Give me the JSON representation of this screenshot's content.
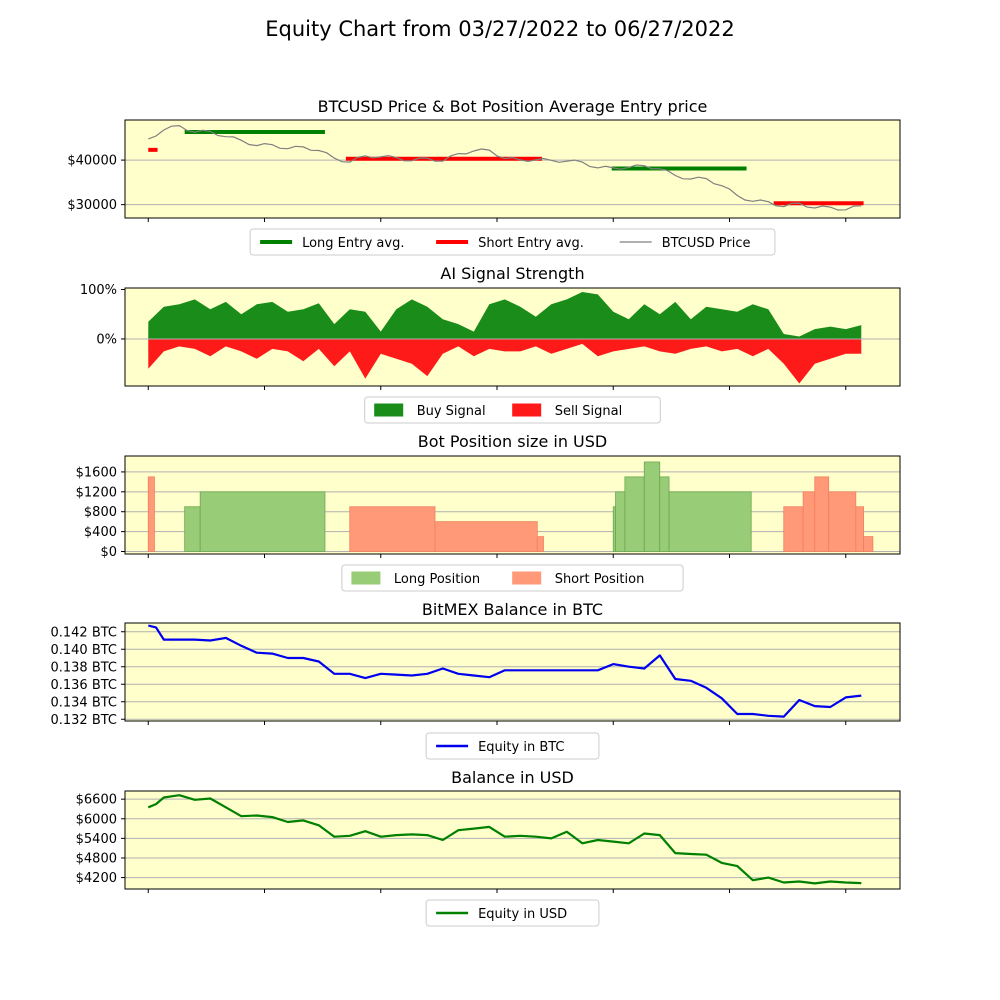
{
  "figure": {
    "title": "Equity Chart from 03/27/2022 to 06/27/2022"
  },
  "colors": {
    "panel_bg": "#ffffcc",
    "long": "#008000",
    "short": "#ff0000",
    "price": "#808080",
    "buy_fill": "#1a8c1a",
    "sell_fill": "#ff1a1a",
    "long_pos": "#99cc77",
    "short_pos": "#ff9977",
    "btc_line": "#0000ee",
    "usd_line": "#008000",
    "grid": "#b0b0b0"
  },
  "chart_data": [
    {
      "type": "line",
      "title": "BTCUSD Price & Bot Position Average Entry price",
      "ylim": [
        27000,
        49000
      ],
      "yticks": [
        30000,
        40000
      ],
      "ytick_labels": [
        "$30000",
        "$40000"
      ],
      "grid": "horizontal",
      "legend": {
        "placement": "bottom",
        "entries": [
          "Long Entry avg.",
          "Short Entry avg.",
          "BTCUSD Price"
        ]
      },
      "series": [
        {
          "name": "BTCUSD Price",
          "x": [
            0,
            2,
            4,
            6,
            8,
            10,
            12,
            14,
            16,
            18,
            20,
            22,
            24,
            26,
            28,
            30,
            32,
            34,
            36,
            38,
            40,
            42,
            44,
            46,
            48,
            50,
            52,
            54,
            56,
            58,
            60,
            62,
            64,
            66,
            68,
            70,
            72,
            74,
            76,
            78,
            80,
            82,
            84,
            86,
            88,
            90,
            92
          ],
          "y": [
            44500,
            47000,
            47500,
            46500,
            46200,
            45500,
            44200,
            43500,
            43200,
            42800,
            42700,
            42400,
            40200,
            39800,
            40700,
            41000,
            40300,
            40100,
            40200,
            40000,
            41200,
            42300,
            42000,
            40600,
            39800,
            40300,
            39700,
            40000,
            39300,
            38500,
            38000,
            38600,
            38500,
            38300,
            36300,
            36000,
            35600,
            34500,
            31800,
            31000,
            30400,
            29800,
            30100,
            29500,
            29200,
            29100,
            29500
          ]
        },
        {
          "name": "Long Entry avg.",
          "segments": [
            {
              "x": [
                4.7,
                22.8
              ],
              "y": 46300
            },
            {
              "x": [
                59.8,
                77.2
              ],
              "y": 38100
            }
          ]
        },
        {
          "name": "Short Entry avg.",
          "segments": [
            {
              "x": [
                0,
                1.2
              ],
              "y": 42300
            },
            {
              "x": [
                25.5,
                50.8
              ],
              "y": 40300
            },
            {
              "x": [
                80.7,
                92.3
              ],
              "y": 30300
            }
          ]
        }
      ]
    },
    {
      "type": "area",
      "title": "AI Signal Strength",
      "ylim": [
        -95,
        103
      ],
      "yticks": [
        0,
        100
      ],
      "ytick_labels": [
        "0%",
        "100%"
      ],
      "legend": {
        "placement": "bottom",
        "entries": [
          "Buy Signal",
          "Sell Signal"
        ]
      },
      "series": [
        {
          "name": "Buy Signal",
          "x": [
            0,
            2,
            4,
            6,
            8,
            10,
            12,
            14,
            16,
            18,
            20,
            22,
            24,
            26,
            28,
            30,
            32,
            34,
            36,
            38,
            40,
            42,
            44,
            46,
            48,
            50,
            52,
            54,
            56,
            58,
            60,
            62,
            64,
            66,
            68,
            70,
            72,
            74,
            76,
            78,
            80,
            82,
            84,
            86,
            88,
            90,
            92
          ],
          "y": [
            35,
            65,
            70,
            80,
            60,
            75,
            50,
            70,
            75,
            55,
            60,
            72,
            30,
            60,
            55,
            15,
            60,
            80,
            65,
            40,
            30,
            15,
            70,
            80,
            65,
            45,
            70,
            80,
            95,
            90,
            55,
            40,
            70,
            50,
            75,
            40,
            65,
            60,
            55,
            70,
            60,
            10,
            5,
            20,
            25,
            20,
            28
          ]
        },
        {
          "name": "Sell Signal",
          "x": [
            0,
            2,
            4,
            6,
            8,
            10,
            12,
            14,
            16,
            18,
            20,
            22,
            24,
            26,
            28,
            30,
            32,
            34,
            36,
            38,
            40,
            42,
            44,
            46,
            48,
            50,
            52,
            54,
            56,
            58,
            60,
            62,
            64,
            66,
            68,
            70,
            72,
            74,
            76,
            78,
            80,
            82,
            84,
            86,
            88,
            90,
            92
          ],
          "y": [
            -60,
            -25,
            -15,
            -20,
            -35,
            -15,
            -25,
            -40,
            -20,
            -25,
            -45,
            -20,
            -55,
            -25,
            -80,
            -30,
            -40,
            -50,
            -75,
            -30,
            -15,
            -35,
            -20,
            -25,
            -25,
            -15,
            -30,
            -20,
            -10,
            -35,
            -25,
            -20,
            -15,
            -25,
            -30,
            -20,
            -15,
            -25,
            -20,
            -35,
            -20,
            -50,
            -90,
            -50,
            -40,
            -30,
            -30
          ]
        }
      ]
    },
    {
      "type": "area",
      "title": "Bot Position size in USD",
      "ylim": [
        -50,
        1920
      ],
      "yticks": [
        0,
        400,
        800,
        1200,
        1600
      ],
      "ytick_labels": [
        "$0",
        "$400",
        "$800",
        "$1200",
        "$1600"
      ],
      "grid": "horizontal",
      "legend": {
        "placement": "bottom",
        "entries": [
          "Long Position",
          "Short Position"
        ]
      },
      "series": [
        {
          "name": "Long Position",
          "blocks": [
            {
              "x": [
                4.7,
                6.7
              ],
              "y": 900
            },
            {
              "x": [
                6.7,
                22.8
              ],
              "y": 1200
            },
            {
              "x": [
                60.0,
                60.3
              ],
              "y": 900
            },
            {
              "x": [
                60.3,
                61.5
              ],
              "y": 1200
            },
            {
              "x": [
                61.5,
                64.0
              ],
              "y": 1500
            },
            {
              "x": [
                64.0,
                66.0
              ],
              "y": 1800
            },
            {
              "x": [
                66.0,
                67.2
              ],
              "y": 1500
            },
            {
              "x": [
                67.2,
                77.8
              ],
              "y": 1200
            }
          ]
        },
        {
          "name": "Short Position",
          "blocks": [
            {
              "x": [
                0,
                0.8
              ],
              "y": 1500
            },
            {
              "x": [
                26.0,
                37.0
              ],
              "y": 900
            },
            {
              "x": [
                37.0,
                50.2
              ],
              "y": 600
            },
            {
              "x": [
                50.2,
                51.0
              ],
              "y": 300
            },
            {
              "x": [
                82.0,
                84.5
              ],
              "y": 900
            },
            {
              "x": [
                84.5,
                86.0
              ],
              "y": 1200
            },
            {
              "x": [
                86.0,
                87.8
              ],
              "y": 1500
            },
            {
              "x": [
                87.8,
                91.3
              ],
              "y": 1200
            },
            {
              "x": [
                91.3,
                92.3
              ],
              "y": 900
            },
            {
              "x": [
                92.3,
                93.5
              ],
              "y": 300
            }
          ]
        }
      ]
    },
    {
      "type": "line",
      "title": "BitMEX Balance in BTC",
      "ylim": [
        0.1318,
        0.143
      ],
      "yticks": [
        0.132,
        0.134,
        0.136,
        0.138,
        0.14,
        0.142
      ],
      "ytick_labels": [
        "0.132 BTC",
        "0.134 BTC",
        "0.136 BTC",
        "0.138 BTC",
        "0.140 BTC",
        "0.142 BTC"
      ],
      "grid": "horizontal",
      "legend": {
        "placement": "bottom",
        "entries": [
          "Equity in BTC"
        ]
      },
      "series": [
        {
          "name": "Equity in BTC",
          "x": [
            0,
            1,
            2,
            4,
            6,
            8,
            10,
            12,
            14,
            16,
            18,
            20,
            22,
            24,
            26,
            28,
            30,
            32,
            34,
            36,
            38,
            40,
            42,
            44,
            46,
            48,
            50,
            52,
            54,
            56,
            58,
            60,
            62,
            64,
            66,
            68,
            70,
            72,
            74,
            76,
            78,
            80,
            82,
            84,
            86,
            88,
            90,
            92
          ],
          "y": [
            0.1427,
            0.1425,
            0.1411,
            0.1411,
            0.1411,
            0.141,
            0.1413,
            0.1404,
            0.1396,
            0.1395,
            0.139,
            0.139,
            0.1386,
            0.1372,
            0.1372,
            0.1367,
            0.1372,
            0.1371,
            0.137,
            0.1372,
            0.1378,
            0.1372,
            0.137,
            0.1368,
            0.1376,
            0.1376,
            0.1376,
            0.1376,
            0.1376,
            0.1376,
            0.1376,
            0.1383,
            0.138,
            0.1378,
            0.1393,
            0.1366,
            0.1364,
            0.1356,
            0.1344,
            0.1326,
            0.1326,
            0.1324,
            0.1323,
            0.1342,
            0.1335,
            0.1334,
            0.1345,
            0.1347
          ]
        }
      ]
    },
    {
      "type": "line",
      "title": "Balance in USD",
      "ylim": [
        3850,
        6850
      ],
      "yticks": [
        4200,
        4800,
        5400,
        6000,
        6600
      ],
      "ytick_labels": [
        "$4200",
        "$4800",
        "$5400",
        "$6000",
        "$6600"
      ],
      "grid": "horizontal",
      "legend": {
        "placement": "bottom",
        "entries": [
          "Equity in USD"
        ]
      },
      "series": [
        {
          "name": "Equity in USD",
          "x": [
            0,
            1,
            2,
            4,
            6,
            8,
            10,
            12,
            14,
            16,
            18,
            20,
            22,
            24,
            26,
            28,
            30,
            32,
            34,
            36,
            38,
            40,
            42,
            44,
            46,
            48,
            50,
            52,
            54,
            56,
            58,
            60,
            62,
            64,
            66,
            68,
            70,
            72,
            74,
            76,
            78,
            80,
            82,
            84,
            86,
            88,
            90,
            92
          ],
          "y": [
            6350,
            6450,
            6650,
            6720,
            6580,
            6620,
            6350,
            6080,
            6100,
            6050,
            5900,
            5950,
            5800,
            5450,
            5480,
            5620,
            5450,
            5500,
            5520,
            5500,
            5350,
            5650,
            5700,
            5750,
            5450,
            5480,
            5450,
            5400,
            5600,
            5250,
            5350,
            5300,
            5250,
            5550,
            5500,
            4950,
            4920,
            4900,
            4650,
            4550,
            4120,
            4200,
            4050,
            4080,
            4020,
            4080,
            4050,
            4030
          ]
        }
      ]
    }
  ]
}
